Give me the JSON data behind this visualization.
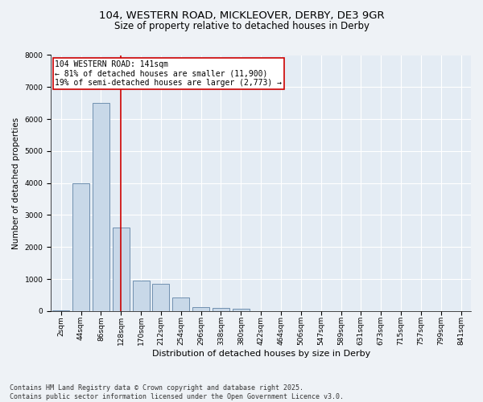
{
  "title_line1": "104, WESTERN ROAD, MICKLEOVER, DERBY, DE3 9GR",
  "title_line2": "Size of property relative to detached houses in Derby",
  "xlabel": "Distribution of detached houses by size in Derby",
  "ylabel": "Number of detached properties",
  "categories": [
    "2sqm",
    "44sqm",
    "86sqm",
    "128sqm",
    "170sqm",
    "212sqm",
    "254sqm",
    "296sqm",
    "338sqm",
    "380sqm",
    "422sqm",
    "464sqm",
    "506sqm",
    "547sqm",
    "589sqm",
    "631sqm",
    "673sqm",
    "715sqm",
    "757sqm",
    "799sqm",
    "841sqm"
  ],
  "values": [
    20,
    4000,
    6500,
    2600,
    950,
    850,
    430,
    130,
    100,
    60,
    0,
    0,
    0,
    0,
    0,
    0,
    0,
    0,
    0,
    0,
    0
  ],
  "bar_color": "#c8d8e8",
  "bar_edge_color": "#7090b0",
  "vline_x_index": 3,
  "vline_color": "#cc0000",
  "annotation_text": "104 WESTERN ROAD: 141sqm\n← 81% of detached houses are smaller (11,900)\n19% of semi-detached houses are larger (2,773) →",
  "annotation_box_color": "#cc0000",
  "ylim": [
    0,
    8000
  ],
  "yticks": [
    0,
    1000,
    2000,
    3000,
    4000,
    5000,
    6000,
    7000,
    8000
  ],
  "footer_line1": "Contains HM Land Registry data © Crown copyright and database right 2025.",
  "footer_line2": "Contains public sector information licensed under the Open Government Licence v3.0.",
  "bg_color": "#eef2f6",
  "plot_bg_color": "#e4ecf4",
  "title_fontsize": 9.5,
  "subtitle_fontsize": 8.5,
  "xlabel_fontsize": 8,
  "ylabel_fontsize": 7.5,
  "tick_fontsize": 6.5,
  "footer_fontsize": 6,
  "annotation_fontsize": 7
}
